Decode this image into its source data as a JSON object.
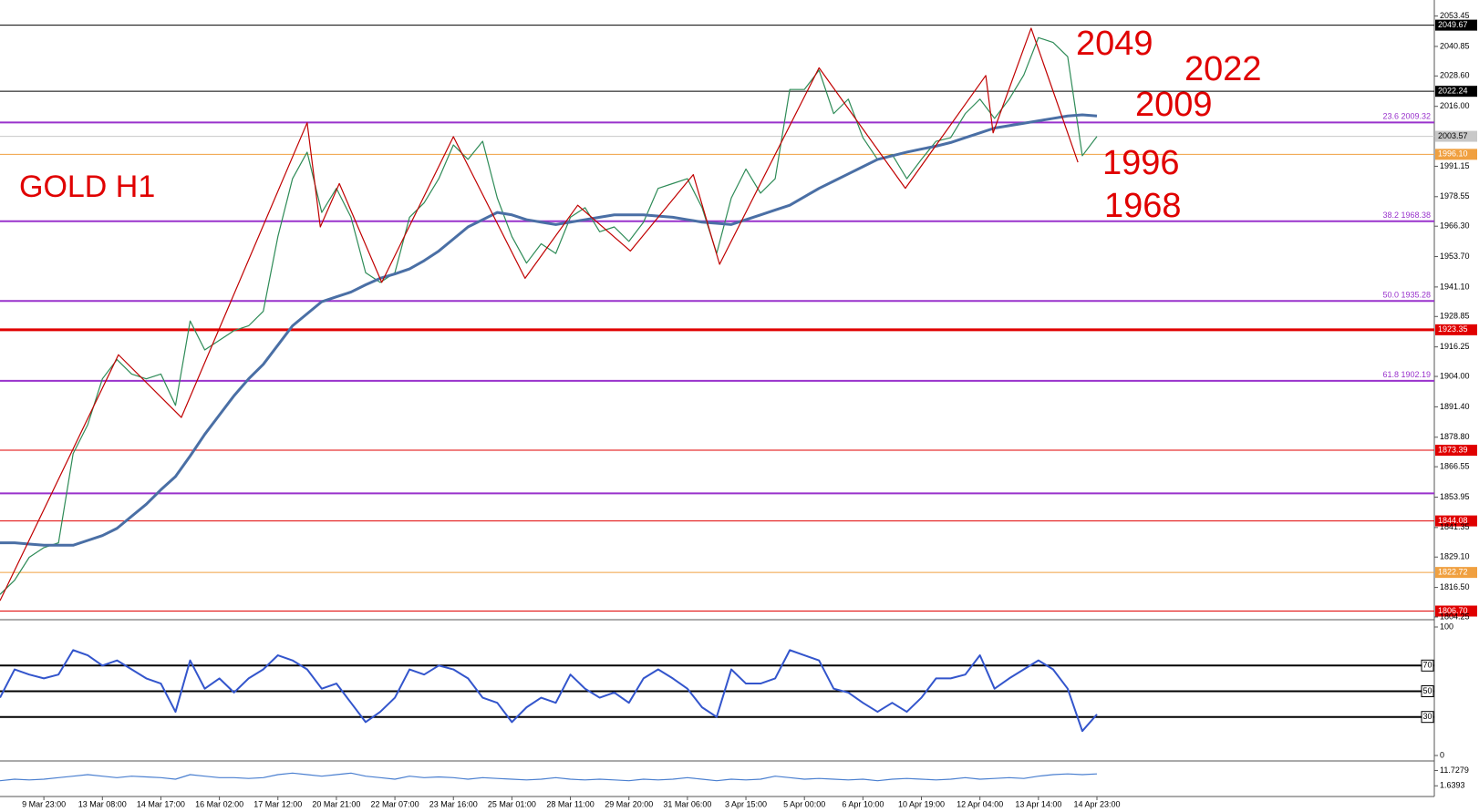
{
  "chart_data": [
    {
      "type": "line",
      "title": "GOLD H1",
      "annotations": [
        "2049",
        "2022",
        "2009",
        "1996",
        "1968"
      ],
      "categories": [
        null,
        null,
        null,
        "9 Mar 23:00",
        null,
        null,
        null,
        "13 Mar 08:00",
        null,
        null,
        null,
        "14 Mar 17:00",
        null,
        null,
        null,
        "16 Mar 02:00",
        null,
        null,
        null,
        "17 Mar 12:00",
        null,
        null,
        null,
        "20 Mar 21:00",
        null,
        null,
        null,
        "22 Mar 07:00",
        null,
        null,
        null,
        "23 Mar 16:00",
        null,
        null,
        null,
        "25 Mar 01:00",
        null,
        null,
        null,
        "28 Mar 11:00",
        null,
        null,
        null,
        "29 Mar 20:00",
        null,
        null,
        null,
        "31 Mar 06:00",
        null,
        null,
        null,
        "3 Apr 15:00",
        null,
        null,
        null,
        "5 Apr 00:00",
        null,
        null,
        null,
        "6 Apr 10:00",
        null,
        null,
        null,
        "10 Apr 19:00",
        null,
        null,
        null,
        "12 Apr 04:00",
        null,
        null,
        null,
        "13 Apr 14:00",
        null,
        null,
        null,
        "14 Apr 23:00"
      ],
      "ylim": [
        1804.25,
        2053.45
      ],
      "yticks": [
        2053.45,
        2040.85,
        {
          "value": 2028.6,
          "label": "2028.60"
        },
        {
          "value": 2016,
          "label": "2016.00"
        },
        1991.15,
        1978.55,
        {
          "value": 1966.3,
          "label": "1966.30"
        },
        {
          "value": 1953.7,
          "label": "1953.70"
        },
        {
          "value": 1941.1,
          "label": "1941.10"
        },
        1928.85,
        1916.25,
        {
          "value": 1904,
          "label": "1904.00"
        },
        {
          "value": 1891.4,
          "label": "1891.40"
        },
        {
          "value": 1878.8,
          "label": "1878.80"
        },
        1866.55,
        1853.95,
        1841.35,
        {
          "value": 1829.1,
          "label": "1829.10"
        },
        {
          "value": 1816.5,
          "label": "1816.50"
        },
        1804.25
      ],
      "levels": [
        {
          "value": 2049.67,
          "label": "2049.67",
          "color": "#000000",
          "style": "tag"
        },
        {
          "value": 2022.24,
          "label": "2022.24",
          "color": "#000000",
          "style": "tag"
        },
        {
          "value": 2009.32,
          "label": "23.6  2009.32",
          "color": "#9932cc",
          "style": "fib"
        },
        {
          "value": 2003.57,
          "label": "2003.57",
          "color": "#c8c8c8",
          "style": "price"
        },
        {
          "value": 1996.1,
          "label": "1996.10",
          "color": "#f0a040",
          "style": "tag"
        },
        {
          "value": 1968.38,
          "label": "38.2  1968.38",
          "color": "#9932cc",
          "style": "fib"
        },
        {
          "value": 1935.28,
          "label": "50.0  1935.28",
          "color": "#9932cc",
          "style": "fib"
        },
        {
          "value": 1923.35,
          "label": "1923.35",
          "color": "#e00000",
          "style": "thick-tag"
        },
        {
          "value": 1902.19,
          "label": "61.8  1902.19",
          "color": "#9932cc",
          "style": "fib"
        },
        {
          "value": 1873.39,
          "label": "1873.39",
          "color": "#e00000",
          "style": "tag"
        },
        {
          "value": 1855.5,
          "color": "#9932cc",
          "style": "fib"
        },
        {
          "value": 1844.08,
          "label": "1844.08",
          "color": "#e00000",
          "style": "tag"
        },
        {
          "value": 1822.72,
          "label": "1822.72",
          "color": "#f0a040",
          "style": "tag"
        },
        {
          "value": 1806.7,
          "label": "1806.70",
          "color": "#e00000",
          "style": "tag"
        }
      ],
      "series": [
        {
          "color": "#2e8b57",
          "values": [
            1813.6,
            1819.5,
            1829,
            1833,
            1835,
            1872,
            1884,
            1903,
            1911,
            1905,
            1903,
            1905,
            1892,
            1927,
            1915,
            1919,
            1923,
            1925,
            1931,
            1962,
            1986,
            1997,
            1972,
            1982,
            1970,
            1947,
            1943,
            1947,
            1970,
            1976,
            1986,
            2000,
            1994,
            2001.5,
            1978,
            1962,
            1951,
            1959,
            1955,
            1970,
            1974,
            1964,
            1966,
            1960,
            1968,
            1982,
            1984,
            1986,
            1974,
            1955,
            1978,
            1990,
            1980,
            1986,
            2023,
            2023,
            2031,
            2013,
            2019,
            2003,
            1994,
            1996,
            1986,
            1994,
            2001.5,
            2003,
            2013,
            2019,
            2011,
            2019,
            2029,
            2044.5,
            2042.5,
            2036.6,
            1995.5,
            2003.5
          ]
        },
        {
          "color": "#4a6fa5",
          "style": "thick",
          "values": [
            1835,
            1835,
            1834.5,
            1834,
            1834,
            1834,
            1836,
            1838,
            1841,
            1846,
            1851,
            1857,
            1862.5,
            1871,
            1880,
            1888,
            1896,
            1903,
            1909,
            1917,
            1925,
            1930,
            1935,
            1937,
            1939,
            1942,
            1944.7,
            1946.5,
            1948.6,
            1952,
            1956,
            1961,
            1966,
            1969,
            1972,
            1971,
            1969,
            1968,
            1967,
            1968,
            1969,
            1970,
            1971,
            1971,
            1971,
            1970.5,
            1970,
            1969,
            1968,
            1967.5,
            1967,
            1969,
            1971,
            1973,
            1975,
            1978.5,
            1982,
            1985,
            1988,
            1991,
            1994,
            1995.5,
            1997,
            1998.3,
            1999.5,
            2001,
            2003,
            2005,
            2007,
            2008,
            2009,
            2010,
            2011,
            2012,
            2012.5,
            2012
          ]
        },
        {
          "color": "#c00000",
          "x": [
            0,
            8.1,
            12.4,
            21,
            21.9,
            23.2,
            26.1,
            31,
            35.9,
            39.5,
            43.1,
            47.4,
            49.2,
            56,
            61.9,
            67.4,
            67.9,
            70.5,
            73.7
          ],
          "values": [
            1811,
            1913,
            1887,
            2009.2,
            1966,
            1984,
            1943,
            2003.4,
            1944.7,
            1975,
            1956,
            1987.7,
            1950.5,
            2032,
            1982,
            2028.8,
            2005,
            2048.4,
            1992.8
          ]
        }
      ]
    },
    {
      "type": "line",
      "ylim": [
        0,
        100
      ],
      "yticks": [
        0,
        100
      ],
      "levels": [
        70,
        50,
        30
      ],
      "series": [
        {
          "color": "#3355cc",
          "style": "thick",
          "values": [
            45,
            67,
            63,
            60,
            63,
            82,
            78,
            70,
            74,
            67,
            60,
            56,
            34,
            74,
            52,
            60,
            49,
            60,
            67,
            78,
            74,
            67,
            52,
            56,
            41,
            26,
            34,
            45,
            67,
            63,
            70,
            67,
            60,
            45,
            41,
            26,
            37.5,
            45,
            41,
            63,
            52,
            45,
            49,
            41,
            60,
            67,
            60,
            52,
            37.5,
            30,
            67,
            56,
            56,
            60,
            82,
            78,
            74,
            52,
            49,
            41,
            34,
            41,
            34,
            45,
            60,
            60,
            63,
            78,
            52,
            60,
            67,
            74,
            67,
            52,
            19,
            32
          ]
        }
      ]
    },
    {
      "type": "line",
      "ylim": [
        -3.6,
        15.6
      ],
      "yticks": [
        11.7279,
        1.6393
      ],
      "series": [
        {
          "color": "#4a7fd0",
          "values": [
            5,
            6,
            5.5,
            6,
            7,
            8,
            9,
            8,
            7,
            8,
            7.5,
            7,
            6,
            9,
            8,
            7,
            7,
            6.5,
            7,
            9,
            10,
            9,
            8,
            9,
            10,
            8,
            7,
            6,
            8,
            7,
            7.5,
            7,
            6,
            7,
            6.5,
            6,
            5.5,
            6,
            7,
            6,
            5.5,
            6,
            5.5,
            5,
            6,
            5.5,
            6,
            7,
            6,
            5,
            6,
            5.5,
            6,
            8,
            7,
            6,
            6.5,
            6,
            5.5,
            6,
            5,
            6,
            6.5,
            6,
            5.5,
            6,
            7,
            6,
            6.5,
            7,
            6.5,
            8,
            9,
            9.5,
            9,
            9.5
          ]
        }
      ]
    }
  ]
}
